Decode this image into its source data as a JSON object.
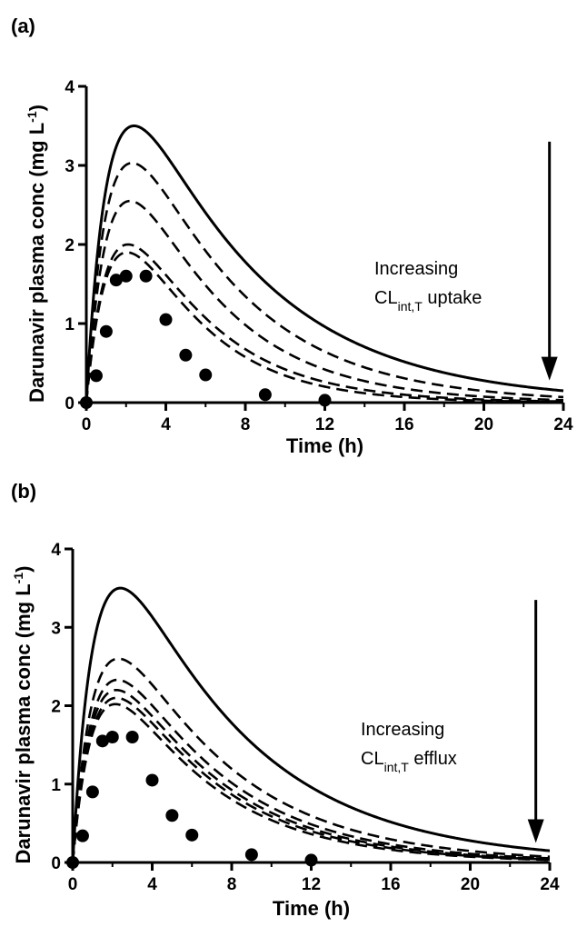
{
  "chart_data": [
    {
      "type": "line",
      "panel_label": "(a)",
      "xlabel": "Time (h)",
      "ylabel": {
        "main": "Darunavir plasma conc (mg L",
        "sup": "-1",
        "close": ")"
      },
      "xlim": [
        0,
        24
      ],
      "ylim": [
        0,
        4
      ],
      "xticks": [
        0,
        4,
        8,
        12,
        16,
        20,
        24
      ],
      "yticks": [
        0,
        1,
        2,
        3,
        4
      ],
      "minor_xticks": [
        2,
        6,
        10,
        14,
        18,
        22
      ],
      "grid": false,
      "annotation": {
        "line1": "Increasing",
        "line2_main": "CL",
        "line2_sub": "int,T",
        "line2_rest": " uptake"
      },
      "arrow": {
        "x": 23.3,
        "y_from": 3.3,
        "y_to": 0.28
      },
      "observed": {
        "name": "",
        "x": [
          0,
          0.5,
          1,
          1.5,
          2,
          3,
          4,
          5,
          6,
          9,
          12
        ],
        "y": [
          0.0,
          0.34,
          0.9,
          1.55,
          1.6,
          1.6,
          1.05,
          0.6,
          0.35,
          0.1,
          0.03
        ]
      },
      "series": [
        {
          "name": "",
          "style": "solid",
          "cmax": 3.5,
          "tmax": 2.4,
          "k": 0.155
        },
        {
          "name": "",
          "style": "dashed",
          "cmax": 3.03,
          "tmax": 2.3,
          "k": 0.185
        },
        {
          "name": "",
          "style": "dashed",
          "cmax": 2.55,
          "tmax": 2.2,
          "k": 0.215
        },
        {
          "name": "",
          "style": "dashed",
          "cmax": 2.0,
          "tmax": 2.1,
          "k": 0.24
        },
        {
          "name": "",
          "style": "dashed",
          "cmax": 1.9,
          "tmax": 2.05,
          "k": 0.265
        }
      ]
    },
    {
      "type": "line",
      "panel_label": "(b)",
      "xlabel": "Time (h)",
      "ylabel": {
        "main": "Darunavir plasma conc (mg L",
        "sup": "-1",
        "close": ")"
      },
      "xlim": [
        0,
        24
      ],
      "ylim": [
        0,
        4
      ],
      "xticks": [
        0,
        4,
        8,
        12,
        16,
        20,
        24
      ],
      "yticks": [
        0,
        1,
        2,
        3,
        4
      ],
      "minor_xticks": [
        2,
        6,
        10,
        14,
        18,
        22
      ],
      "grid": false,
      "annotation": {
        "line1": "Increasing",
        "line2_main": "CL",
        "line2_sub": "int,T",
        "line2_rest": " efflux"
      },
      "arrow": {
        "x": 23.3,
        "y_from": 3.35,
        "y_to": 0.25
      },
      "observed": {
        "name": "",
        "x": [
          0,
          0.5,
          1,
          1.5,
          2,
          3,
          4,
          5,
          6,
          9,
          12
        ],
        "y": [
          0.0,
          0.34,
          0.9,
          1.55,
          1.6,
          1.6,
          1.05,
          0.6,
          0.35,
          0.1,
          0.03
        ]
      },
      "series": [
        {
          "name": "",
          "style": "solid",
          "cmax": 3.5,
          "tmax": 2.4,
          "k": 0.155
        },
        {
          "name": "",
          "style": "dashed",
          "cmax": 2.6,
          "tmax": 2.3,
          "k": 0.175
        },
        {
          "name": "",
          "style": "dashed",
          "cmax": 2.33,
          "tmax": 2.25,
          "k": 0.185
        },
        {
          "name": "",
          "style": "dashed",
          "cmax": 2.2,
          "tmax": 2.2,
          "k": 0.19
        },
        {
          "name": "",
          "style": "dashed",
          "cmax": 2.1,
          "tmax": 2.2,
          "k": 0.195
        },
        {
          "name": "",
          "style": "dashed",
          "cmax": 2.02,
          "tmax": 2.15,
          "k": 0.2
        }
      ]
    }
  ]
}
